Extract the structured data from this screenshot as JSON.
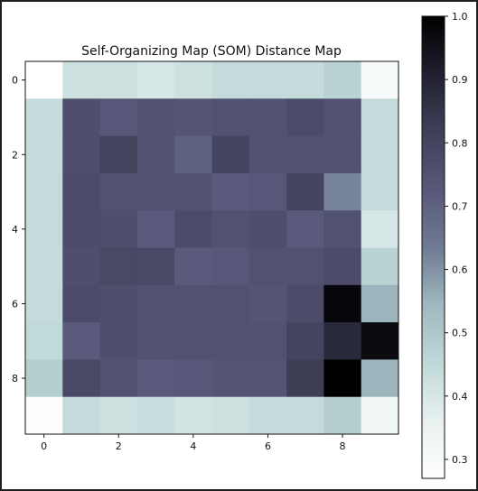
{
  "chart_data": {
    "type": "heatmap",
    "title": "Self-Organizing Map (SOM) Distance Map",
    "xlabel": "",
    "ylabel": "",
    "colormap": "bone_r",
    "rows": 10,
    "cols": 10,
    "x_ticks": [
      0,
      2,
      4,
      6,
      8
    ],
    "y_ticks": [
      0,
      2,
      4,
      6,
      8
    ],
    "colorbar": {
      "range": [
        0.27,
        1.0
      ],
      "ticks": [
        "0.3",
        "0.4",
        "0.5",
        "0.6",
        "0.7",
        "0.8",
        "0.9",
        "1.0"
      ]
    },
    "values": [
      [
        0.27,
        0.42,
        0.42,
        0.4,
        0.42,
        0.44,
        0.44,
        0.44,
        0.47,
        0.3
      ],
      [
        0.44,
        0.76,
        0.73,
        0.75,
        0.74,
        0.75,
        0.75,
        0.77,
        0.75,
        0.44
      ],
      [
        0.44,
        0.76,
        0.8,
        0.75,
        0.7,
        0.8,
        0.75,
        0.75,
        0.75,
        0.44
      ],
      [
        0.44,
        0.77,
        0.75,
        0.75,
        0.75,
        0.72,
        0.73,
        0.8,
        0.62,
        0.44
      ],
      [
        0.44,
        0.77,
        0.76,
        0.72,
        0.77,
        0.75,
        0.76,
        0.72,
        0.75,
        0.4
      ],
      [
        0.44,
        0.76,
        0.78,
        0.78,
        0.72,
        0.73,
        0.75,
        0.75,
        0.77,
        0.47
      ],
      [
        0.44,
        0.77,
        0.76,
        0.75,
        0.75,
        0.75,
        0.74,
        0.77,
        0.98,
        0.55
      ],
      [
        0.45,
        0.72,
        0.76,
        0.75,
        0.75,
        0.75,
        0.75,
        0.8,
        0.88,
        0.97
      ],
      [
        0.48,
        0.78,
        0.75,
        0.72,
        0.73,
        0.74,
        0.74,
        0.82,
        1.0,
        0.55
      ],
      [
        0.28,
        0.44,
        0.42,
        0.43,
        0.41,
        0.42,
        0.44,
        0.44,
        0.48,
        0.33
      ]
    ]
  }
}
